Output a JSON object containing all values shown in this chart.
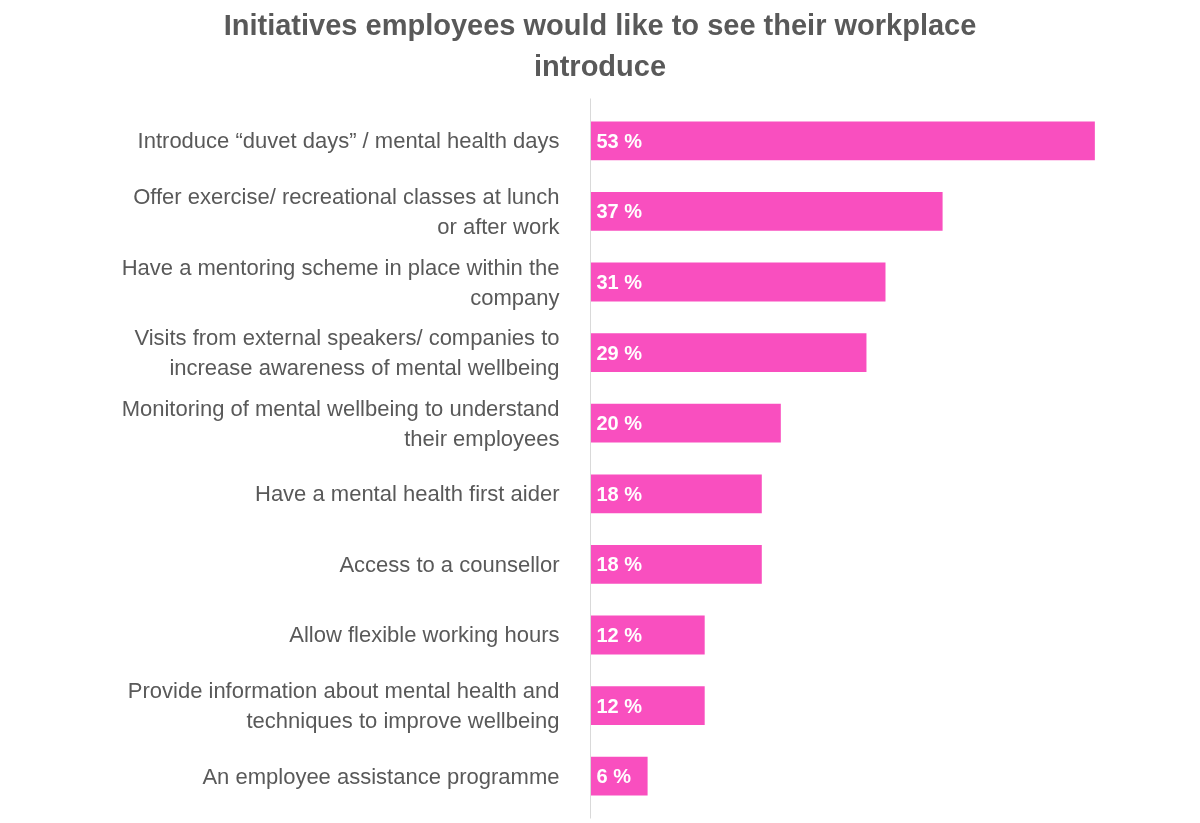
{
  "chart_data": {
    "type": "bar",
    "orientation": "horizontal",
    "title": "Initiatives employees would like to see their workplace introduce",
    "categories": [
      "Introduce “duvet days” / mental health days",
      "Offer exercise/ recreational classes at lunch or after work",
      "Have a mentoring scheme in place within the company",
      "Visits from external speakers/ companies to increase awareness of mental wellbeing",
      "Monitoring of mental wellbeing to understand their employees",
      "Have a mental health first aider",
      "Access to a counsellor",
      "Allow flexible working hours",
      "Provide information about mental health and techniques to improve wellbeing",
      "An employee assistance programme"
    ],
    "values": [
      53,
      37,
      31,
      29,
      20,
      18,
      18,
      12,
      12,
      6
    ],
    "value_labels": [
      "53 %",
      "37 %",
      "31 %",
      "29 %",
      "20 %",
      "18 %",
      "18 %",
      "12 %",
      "12 %",
      "6 %"
    ],
    "color": "#f94fbf",
    "grid": false
  }
}
